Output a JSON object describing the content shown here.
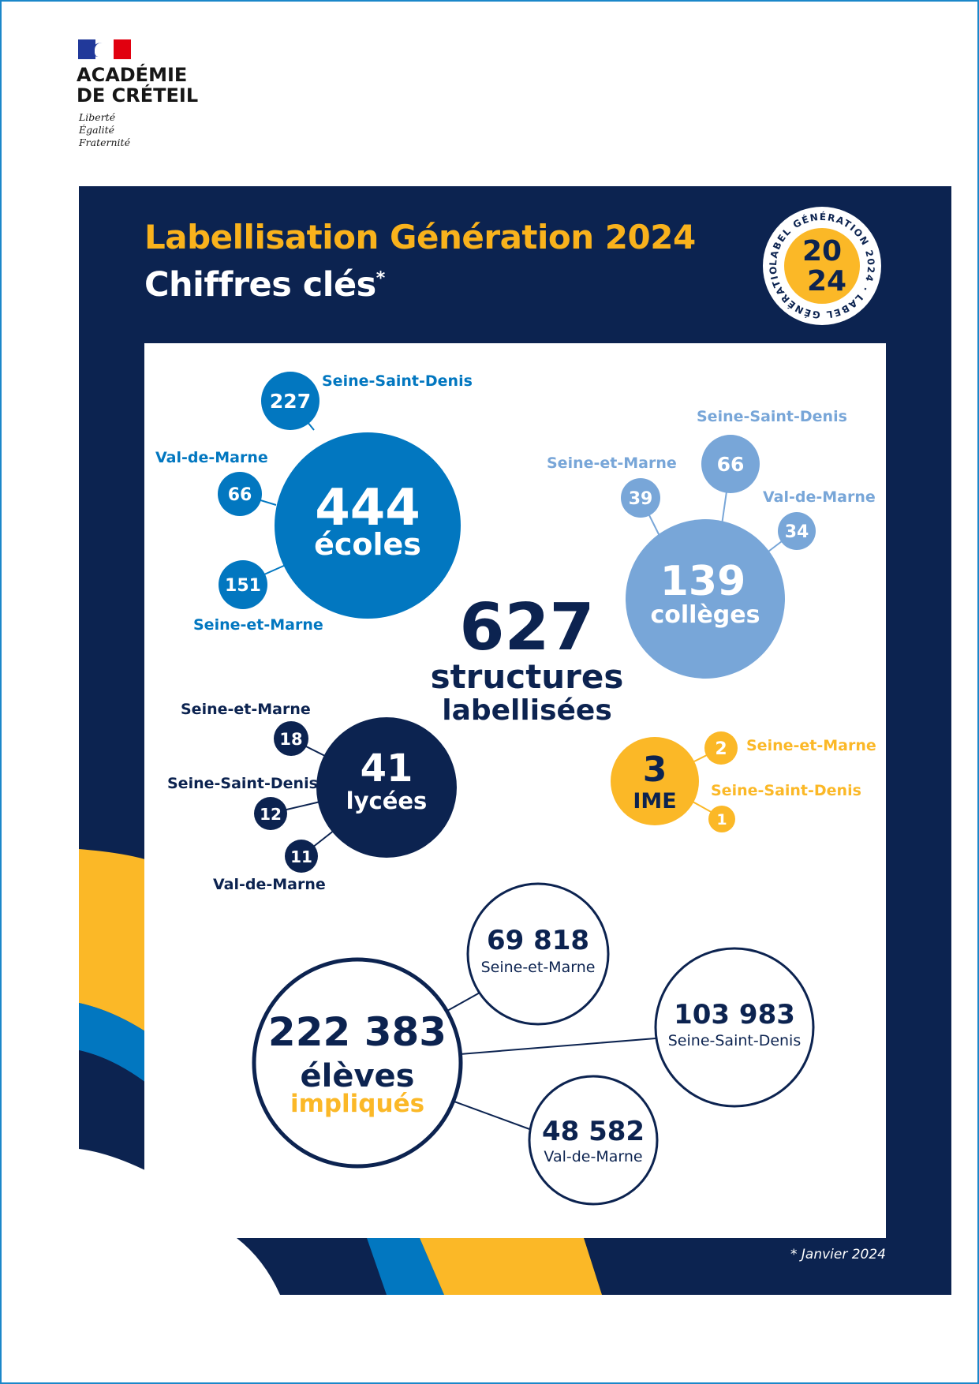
{
  "logo": {
    "name_line1": "ACADÉMIE",
    "name_line2": "DE CRÉTEIL",
    "motto": [
      "Liberté",
      "Égalité",
      "Fraternité"
    ]
  },
  "badge": {
    "ring_text": "LABEL GÉNÉRATION 2024 · LABEL GÉNÉRATION 2024 ·",
    "year_top": "20",
    "year_bottom": "24"
  },
  "header": {
    "title": "Labellisation Génération 2024",
    "subtitle": "Chiffres clés",
    "subtitle_mark": "*"
  },
  "total": {
    "value": "627",
    "label_line1": "structures",
    "label_line2": "labellisées"
  },
  "ecoles": {
    "value": "444",
    "label": "écoles",
    "branches": [
      {
        "value": "227",
        "dept": "Seine-Saint-Denis"
      },
      {
        "value": "66",
        "dept": "Val-de-Marne"
      },
      {
        "value": "151",
        "dept": "Seine-et-Marne"
      }
    ]
  },
  "colleges": {
    "value": "139",
    "label": "collèges",
    "branches": [
      {
        "value": "39",
        "dept": "Seine-et-Marne"
      },
      {
        "value": "66",
        "dept": "Seine-Saint-Denis"
      },
      {
        "value": "34",
        "dept": "Val-de-Marne"
      }
    ]
  },
  "lycees": {
    "value": "41",
    "label": "lycées",
    "branches": [
      {
        "value": "18",
        "dept": "Seine-et-Marne"
      },
      {
        "value": "12",
        "dept": "Seine-Saint-Denis"
      },
      {
        "value": "11",
        "dept": "Val-de-Marne"
      }
    ]
  },
  "ime": {
    "value": "3",
    "label": "IME",
    "branches": [
      {
        "value": "2",
        "dept": "Seine-et-Marne"
      },
      {
        "value": "1",
        "dept": "Seine-Saint-Denis"
      }
    ]
  },
  "eleves": {
    "value": "222 383",
    "label_line1": "élèves",
    "label_line2": "impliqués",
    "branches": [
      {
        "value": "69 818",
        "dept": "Seine-et-Marne"
      },
      {
        "value": "103 983",
        "dept": "Seine-Saint-Denis"
      },
      {
        "value": "48 582",
        "dept": "Val-de-Marne"
      }
    ]
  },
  "footnote": "* Janvier 2024",
  "colors": {
    "navy": "#0c2350",
    "blue": "#0277c0",
    "light_blue": "#78a6d8",
    "yellow": "#fbb827",
    "white": "#ffffff"
  }
}
